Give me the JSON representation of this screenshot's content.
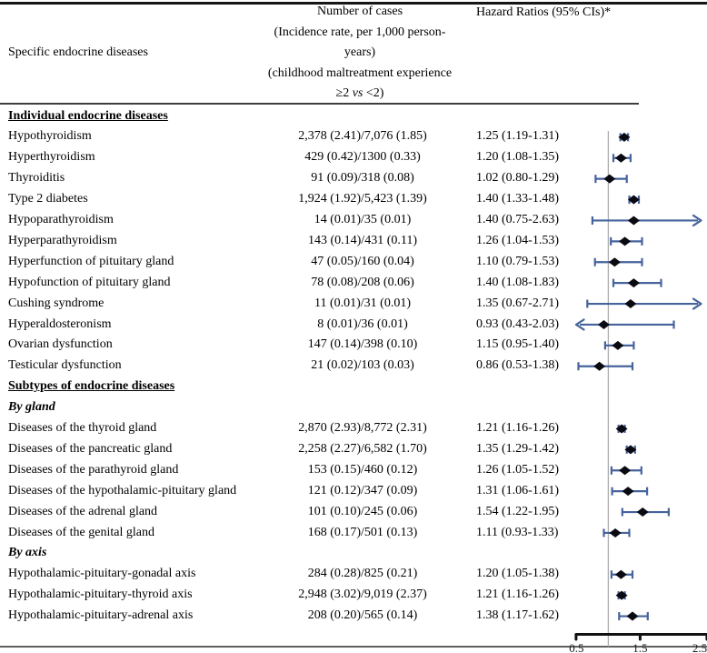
{
  "table": {
    "header": {
      "col1": "Specific endocrine diseases",
      "col2": {
        "lines": [
          "Number of cases",
          "(Incidence rate, per 1,000 person-",
          "years)",
          "(childhood maltreatment experience"
        ],
        "last_line": {
          "pre": "≥2 ",
          "italic": "vs",
          "post": " <2)"
        }
      },
      "col3": "Hazard Ratios (95% CIs)*"
    }
  },
  "colors": {
    "ci_line": "#46639c",
    "marker": "#0a0a12",
    "ref_line": "#adadad",
    "axis_bracket": "#111111",
    "tick_label": "#1c1c1c"
  },
  "chart_data": {
    "type": "forest",
    "xlim": [
      0.5,
      2.5
    ],
    "ref_line": 1.0,
    "axis_ticks": [
      {
        "value": 0.5,
        "label": "0.5"
      },
      {
        "value": 1.5,
        "label": "1.5"
      },
      {
        "value": 2.5,
        "label": "2.5"
      }
    ],
    "rows": [
      {
        "kind": "section",
        "label": "Individual endocrine diseases"
      },
      {
        "kind": "data",
        "label": "Hypothyroidism",
        "cases": "2,378 (2.41)/7,076 (1.85)",
        "hr_text": "1.25 (1.19-1.31)",
        "hr": 1.25,
        "lo": 1.19,
        "hi": 1.31
      },
      {
        "kind": "data",
        "label": "Hyperthyroidism",
        "cases": "429 (0.42)/1300 (0.33)",
        "hr_text": "1.20 (1.08-1.35)",
        "hr": 1.2,
        "lo": 1.08,
        "hi": 1.35
      },
      {
        "kind": "data",
        "label": "Thyroiditis",
        "cases": "91 (0.09)/318 (0.08)",
        "hr_text": "1.02 (0.80-1.29)",
        "hr": 1.02,
        "lo": 0.8,
        "hi": 1.29
      },
      {
        "kind": "data",
        "label": "Type 2 diabetes",
        "cases": "1,924 (1.92)/5,423 (1.39)",
        "hr_text": "1.40 (1.33-1.48)",
        "hr": 1.4,
        "lo": 1.33,
        "hi": 1.48
      },
      {
        "kind": "data",
        "label": "Hypoparathyroidism",
        "cases": "14 (0.01)/35 (0.01)",
        "hr_text": "1.40 (0.75-2.63)",
        "hr": 1.4,
        "lo": 0.75,
        "hi": 2.63,
        "clip": "right"
      },
      {
        "kind": "data",
        "label": "Hyperparathyroidism",
        "cases": "143 (0.14)/431 (0.11)",
        "hr_text": "1.26 (1.04-1.53)",
        "hr": 1.26,
        "lo": 1.04,
        "hi": 1.53
      },
      {
        "kind": "data",
        "label": "Hyperfunction of pituitary gland",
        "cases": "47 (0.05)/160 (0.04)",
        "hr_text": "1.10 (0.79-1.53)",
        "hr": 1.1,
        "lo": 0.79,
        "hi": 1.53
      },
      {
        "kind": "data",
        "label": "Hypofunction of pituitary gland",
        "cases": "78 (0.08)/208 (0.06)",
        "hr_text": "1.40 (1.08-1.83)",
        "hr": 1.4,
        "lo": 1.08,
        "hi": 1.83
      },
      {
        "kind": "data",
        "label": "Cushing syndrome",
        "cases": "11 (0.01)/31 (0.01)",
        "hr_text": "1.35 (0.67-2.71)",
        "hr": 1.35,
        "lo": 0.67,
        "hi": 2.71,
        "clip": "right"
      },
      {
        "kind": "data",
        "label": "Hyperaldosteronism",
        "cases": "8 (0.01)/36 (0.01)",
        "hr_text": "0.93 (0.43-2.03)",
        "hr": 0.93,
        "lo": 0.43,
        "hi": 2.03,
        "clip": "left"
      },
      {
        "kind": "data",
        "label": "Ovarian dysfunction",
        "cases": "147 (0.14)/398 (0.10)",
        "hr_text": "1.15 (0.95-1.40)",
        "hr": 1.15,
        "lo": 0.95,
        "hi": 1.4
      },
      {
        "kind": "data",
        "label": "Testicular dysfunction",
        "cases": "21 (0.02)/103 (0.03)",
        "hr_text": "0.86 (0.53-1.38)",
        "hr": 0.86,
        "lo": 0.53,
        "hi": 1.38
      },
      {
        "kind": "section",
        "label": "Subtypes of endocrine diseases"
      },
      {
        "kind": "subsection",
        "label": "By gland"
      },
      {
        "kind": "data",
        "label": "Diseases of the thyroid gland",
        "cases": "2,870 (2.93)/8,772 (2.31)",
        "hr_text": "1.21 (1.16-1.26)",
        "hr": 1.21,
        "lo": 1.16,
        "hi": 1.26
      },
      {
        "kind": "data",
        "label": "Diseases of the pancreatic gland",
        "cases": "2,258 (2.27)/6,582 (1.70)",
        "hr_text": "1.35 (1.29-1.42)",
        "hr": 1.35,
        "lo": 1.29,
        "hi": 1.42
      },
      {
        "kind": "data",
        "label": "Diseases of the parathyroid gland",
        "cases": "153 (0.15)/460 (0.12)",
        "hr_text": "1.26 (1.05-1.52)",
        "hr": 1.26,
        "lo": 1.05,
        "hi": 1.52
      },
      {
        "kind": "data",
        "label": "Diseases of the hypothalamic-pituitary gland",
        "cases": "121 (0.12)/347 (0.09)",
        "hr_text": "1.31 (1.06-1.61)",
        "hr": 1.31,
        "lo": 1.06,
        "hi": 1.61
      },
      {
        "kind": "data",
        "label": "Diseases of the adrenal gland",
        "cases": "101 (0.10)/245 (0.06)",
        "hr_text": "1.54 (1.22-1.95)",
        "hr": 1.54,
        "lo": 1.22,
        "hi": 1.95
      },
      {
        "kind": "data",
        "label": "Diseases of the genital gland",
        "cases": "168 (0.17)/501 (0.13)",
        "hr_text": "1.11 (0.93-1.33)",
        "hr": 1.11,
        "lo": 0.93,
        "hi": 1.33
      },
      {
        "kind": "subsection",
        "label": "By axis"
      },
      {
        "kind": "data",
        "label": "Hypothalamic-pituitary-gonadal axis",
        "cases": "284 (0.28)/825 (0.21)",
        "hr_text": "1.20 (1.05-1.38)",
        "hr": 1.2,
        "lo": 1.05,
        "hi": 1.38
      },
      {
        "kind": "data",
        "label": "Hypothalamic-pituitary-thyroid axis",
        "cases": "2,948 (3.02)/9,019 (2.37)",
        "hr_text": "1.21 (1.16-1.26)",
        "hr": 1.21,
        "lo": 1.16,
        "hi": 1.26
      },
      {
        "kind": "data",
        "label": "Hypothalamic-pituitary-adrenal axis",
        "cases": "208 (0.20)/565 (0.14)",
        "hr_text": "1.38 (1.17-1.62)",
        "hr": 1.38,
        "lo": 1.17,
        "hi": 1.62
      }
    ]
  }
}
